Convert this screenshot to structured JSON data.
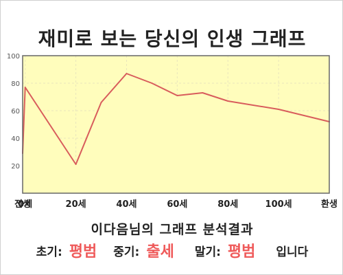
{
  "title": "재미로 보는 당신의 인생 그래프",
  "summary": "이다음님의 그래프 분석결과",
  "result": {
    "early_label": "초기:",
    "early_value": "평범",
    "middle_label": "중기:",
    "middle_value": "출세",
    "late_label": "말기:",
    "late_value": "평범",
    "closing": "입니다"
  },
  "colors": {
    "accent": "#ef5a5a",
    "line": "#d85c5c",
    "fill": "#fffdbc",
    "grid": "#e9e5bc",
    "axis": "#666666"
  },
  "chart_data": {
    "type": "area",
    "x": [
      -1,
      0,
      20,
      30,
      40,
      50,
      60,
      70,
      80,
      100,
      120
    ],
    "x_label_positions": [
      -1,
      0,
      20,
      40,
      60,
      80,
      100,
      120
    ],
    "x_tick_labels": [
      "전생",
      "0세",
      "20세",
      "40세",
      "60세",
      "80세",
      "100세",
      "환생"
    ],
    "y": [
      29,
      77,
      21,
      66,
      87,
      80,
      71,
      73,
      67,
      61,
      52
    ],
    "y_ticks": [
      20,
      40,
      60,
      80,
      100
    ],
    "ylim": [
      0,
      100
    ],
    "grid": true
  }
}
